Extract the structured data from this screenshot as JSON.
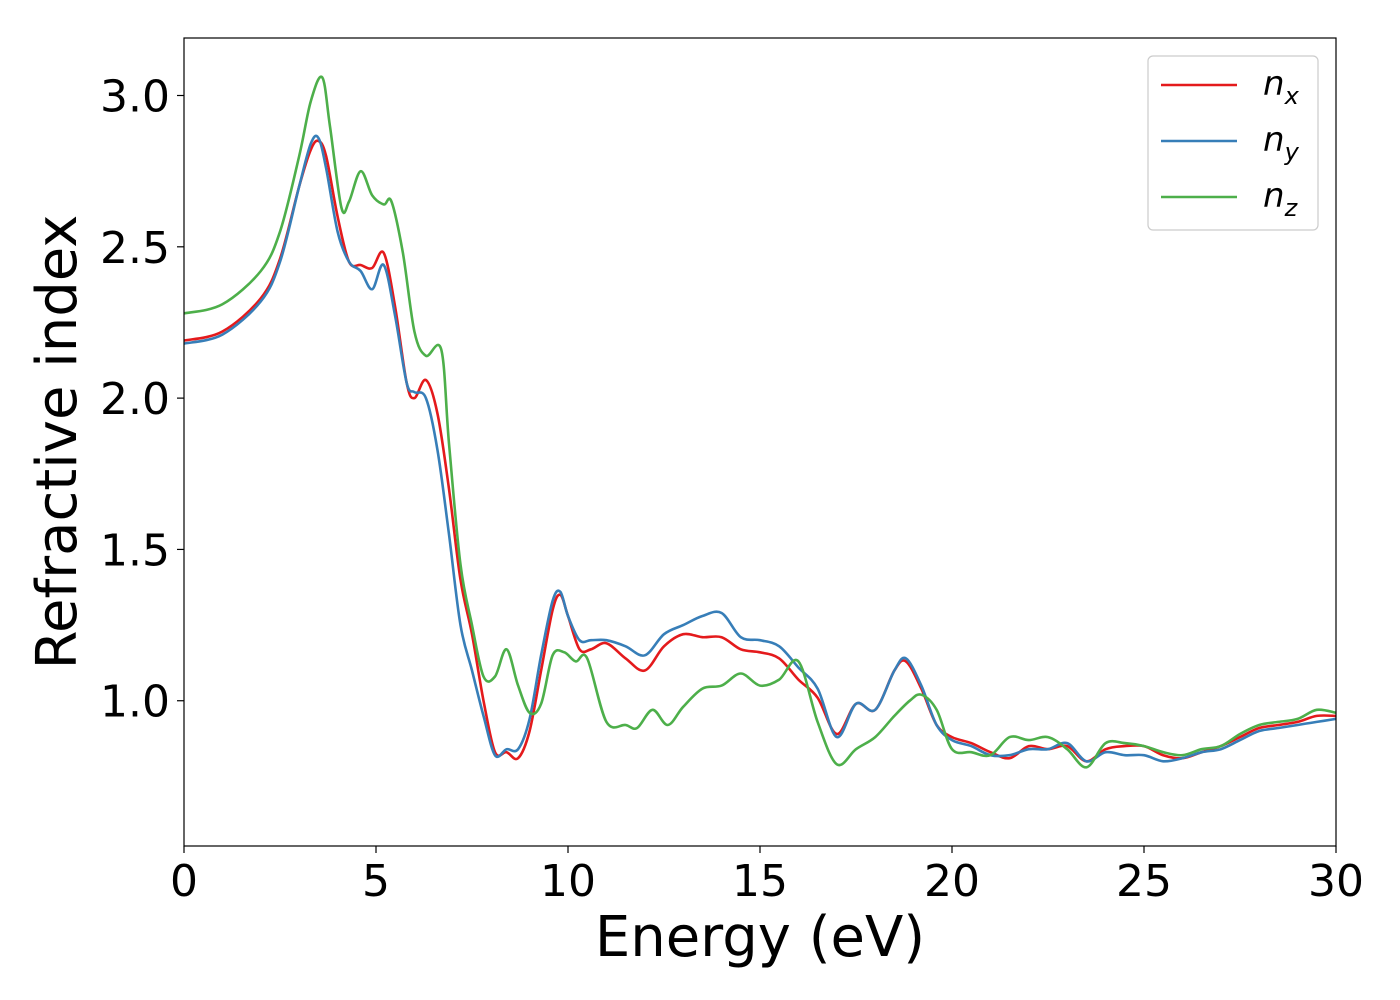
{
  "chart_data": {
    "type": "line",
    "xlabel": "Energy (eV)",
    "ylabel": "Refractive index",
    "xlim": [
      0,
      30
    ],
    "ylim": [
      0.52,
      3.19
    ],
    "xticks": [
      0,
      5,
      10,
      15,
      20,
      25,
      30
    ],
    "yticks": [
      1.0,
      1.5,
      2.0,
      2.5,
      3.0
    ],
    "grid": false,
    "legend_position": "top-right",
    "series": [
      {
        "name": "n_x",
        "label_base": "n",
        "label_sub": "x",
        "color": "#e41a1c",
        "x": [
          0,
          1,
          2,
          2.5,
          3,
          3.3,
          3.5,
          3.7,
          4,
          4.3,
          4.6,
          4.9,
          5.2,
          5.5,
          5.8,
          6.0,
          6.3,
          6.6,
          6.9,
          7.2,
          7.5,
          7.8,
          8.1,
          8.4,
          8.7,
          9.0,
          9.3,
          9.6,
          9.8,
          10.0,
          10.3,
          10.6,
          11.0,
          11.5,
          12.0,
          12.5,
          13.0,
          13.5,
          14.0,
          14.5,
          15.0,
          15.5,
          16.0,
          16.5,
          17.0,
          17.5,
          18.0,
          18.5,
          18.8,
          19.2,
          19.6,
          20.0,
          20.5,
          21.0,
          21.5,
          22.0,
          22.5,
          23.0,
          23.5,
          24.0,
          24.5,
          25.0,
          25.5,
          26.0,
          26.5,
          27.0,
          27.5,
          28.0,
          28.5,
          29.0,
          29.5,
          30.0
        ],
        "values": [
          2.19,
          2.22,
          2.33,
          2.46,
          2.7,
          2.82,
          2.85,
          2.8,
          2.6,
          2.45,
          2.44,
          2.43,
          2.48,
          2.3,
          2.05,
          2.0,
          2.06,
          1.95,
          1.7,
          1.4,
          1.22,
          1.0,
          0.83,
          0.83,
          0.81,
          0.9,
          1.1,
          1.3,
          1.35,
          1.28,
          1.17,
          1.17,
          1.19,
          1.14,
          1.1,
          1.18,
          1.22,
          1.21,
          1.21,
          1.17,
          1.16,
          1.14,
          1.07,
          1.01,
          0.89,
          0.99,
          0.97,
          1.1,
          1.13,
          1.04,
          0.92,
          0.88,
          0.86,
          0.83,
          0.81,
          0.85,
          0.84,
          0.85,
          0.8,
          0.84,
          0.85,
          0.85,
          0.82,
          0.81,
          0.83,
          0.85,
          0.88,
          0.91,
          0.92,
          0.93,
          0.95,
          0.95
        ]
      },
      {
        "name": "n_y",
        "label_base": "n",
        "label_sub": "y",
        "color": "#377eb8",
        "x": [
          0,
          1,
          2,
          2.5,
          3,
          3.3,
          3.5,
          3.7,
          4,
          4.3,
          4.6,
          4.9,
          5.2,
          5.5,
          5.8,
          6.0,
          6.3,
          6.6,
          6.9,
          7.2,
          7.5,
          7.8,
          8.1,
          8.4,
          8.7,
          9.0,
          9.3,
          9.6,
          9.8,
          10.0,
          10.3,
          10.6,
          11.0,
          11.5,
          12.0,
          12.5,
          13.0,
          13.5,
          14.0,
          14.5,
          15.0,
          15.5,
          16.0,
          16.5,
          17.0,
          17.5,
          18.0,
          18.5,
          18.8,
          19.2,
          19.6,
          20.0,
          20.5,
          21.0,
          21.5,
          22.0,
          22.5,
          23.0,
          23.5,
          24.0,
          24.5,
          25.0,
          25.5,
          26.0,
          26.5,
          27.0,
          27.5,
          28.0,
          28.5,
          29.0,
          29.5,
          30.0
        ],
        "values": [
          2.18,
          2.21,
          2.32,
          2.45,
          2.7,
          2.84,
          2.86,
          2.76,
          2.55,
          2.45,
          2.42,
          2.36,
          2.44,
          2.27,
          2.05,
          2.02,
          2.0,
          1.83,
          1.55,
          1.25,
          1.1,
          0.95,
          0.82,
          0.84,
          0.84,
          0.94,
          1.15,
          1.33,
          1.36,
          1.28,
          1.2,
          1.2,
          1.2,
          1.18,
          1.15,
          1.22,
          1.25,
          1.28,
          1.29,
          1.21,
          1.2,
          1.18,
          1.11,
          1.04,
          0.88,
          0.99,
          0.97,
          1.1,
          1.14,
          1.05,
          0.92,
          0.87,
          0.85,
          0.82,
          0.82,
          0.84,
          0.84,
          0.86,
          0.8,
          0.83,
          0.82,
          0.82,
          0.8,
          0.81,
          0.83,
          0.84,
          0.87,
          0.9,
          0.91,
          0.92,
          0.93,
          0.94
        ]
      },
      {
        "name": "n_z",
        "label_base": "n",
        "label_sub": "z",
        "color": "#4daf4a",
        "x": [
          0,
          1,
          2,
          2.5,
          3,
          3.3,
          3.6,
          3.8,
          4.1,
          4.3,
          4.6,
          4.9,
          5.2,
          5.4,
          5.7,
          6.0,
          6.3,
          6.7,
          6.9,
          7.2,
          7.5,
          7.8,
          8.1,
          8.4,
          8.7,
          9.0,
          9.3,
          9.6,
          9.9,
          10.2,
          10.5,
          11.0,
          11.5,
          11.8,
          12.2,
          12.6,
          13.0,
          13.5,
          14.0,
          14.5,
          15.0,
          15.5,
          16.0,
          16.5,
          17.0,
          17.5,
          18.0,
          18.5,
          18.9,
          19.2,
          19.6,
          20.0,
          20.5,
          21.0,
          21.5,
          22.0,
          22.5,
          23.0,
          23.5,
          24.0,
          24.5,
          25.0,
          25.5,
          26.0,
          26.5,
          27.0,
          27.5,
          28.0,
          28.5,
          29.0,
          29.5,
          30.0
        ],
        "values": [
          2.28,
          2.31,
          2.42,
          2.55,
          2.8,
          2.98,
          3.06,
          2.9,
          2.63,
          2.65,
          2.75,
          2.67,
          2.64,
          2.65,
          2.48,
          2.22,
          2.14,
          2.16,
          1.85,
          1.45,
          1.25,
          1.08,
          1.08,
          1.17,
          1.05,
          0.96,
          0.99,
          1.15,
          1.16,
          1.13,
          1.14,
          0.93,
          0.92,
          0.91,
          0.97,
          0.92,
          0.98,
          1.04,
          1.05,
          1.09,
          1.05,
          1.07,
          1.13,
          0.93,
          0.79,
          0.84,
          0.88,
          0.95,
          1.0,
          1.02,
          0.97,
          0.84,
          0.83,
          0.82,
          0.88,
          0.87,
          0.88,
          0.84,
          0.78,
          0.86,
          0.86,
          0.85,
          0.83,
          0.82,
          0.84,
          0.85,
          0.89,
          0.92,
          0.93,
          0.94,
          0.97,
          0.96
        ]
      }
    ]
  }
}
